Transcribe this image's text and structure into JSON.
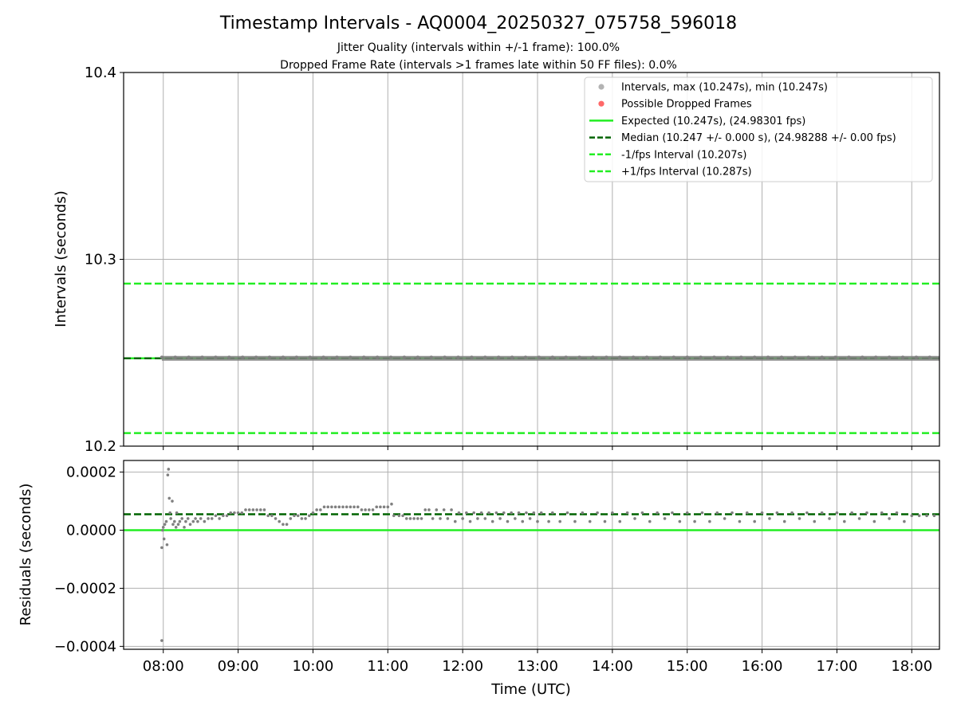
{
  "figure": {
    "title": "Timestamp Intervals - AQ0004_20250327_075758_596018",
    "subtitle_1": "Jitter Quality (intervals within +/-1 frame): 100.0%",
    "subtitle_2": "Dropped Frame Rate (intervals >1 frames late within 50 FF files): 0.0%",
    "xlabel": "Time (UTC)"
  },
  "colors": {
    "points": "#808080",
    "dropped": "#ff4d4d",
    "expected": "#22ee22",
    "median": "#006400",
    "bounds": "#22ee22",
    "grid": "#b0b0b0"
  },
  "chart_data": [
    {
      "type": "scatter",
      "ylabel": "Intervals (seconds)",
      "xlim_hours": [
        7.47,
        18.37
      ],
      "ylim": [
        10.2,
        10.4
      ],
      "yticks": [
        "10.2",
        "10.3",
        "10.4"
      ],
      "grid": true,
      "legend_position": "top-right",
      "series_constant": 10.247,
      "series": [
        {
          "name": "Intervals, max (10.247s), min (10.247s)",
          "kind": "points",
          "color": "#a6a6a6"
        },
        {
          "name": "Possible Dropped Frames",
          "kind": "points",
          "color": "#ff4d4d"
        },
        {
          "name": "Expected (10.247s), (24.98301 fps)",
          "kind": "line",
          "style": "solid",
          "color": "#22ee22",
          "value": 10.247
        },
        {
          "name": "Median (10.247 +/- 0.000 s), (24.98288 +/- 0.00 fps)",
          "kind": "line",
          "style": "dashed",
          "color": "#006400",
          "value": 10.247
        },
        {
          "name": "-1/fps Interval (10.207s)",
          "kind": "line",
          "style": "dashed",
          "color": "#22ee22",
          "value": 10.207
        },
        {
          "name": "+1/fps Interval (10.287s)",
          "kind": "line",
          "style": "dashed",
          "color": "#22ee22",
          "value": 10.287
        }
      ]
    },
    {
      "type": "scatter",
      "ylabel": "Residuals (seconds)",
      "xlim_hours": [
        7.47,
        18.37
      ],
      "ylim": [
        -0.00041,
        0.00024
      ],
      "yticks": [
        {
          "value": 0.0002,
          "label": "0.0002"
        },
        {
          "value": 0.0,
          "label": "0.0000"
        },
        {
          "value": -0.0002,
          "label": "−0.0002"
        },
        {
          "value": -0.0004,
          "label": "−0.0004"
        }
      ],
      "xticks": [
        {
          "hour": 8,
          "label": "08:00"
        },
        {
          "hour": 9,
          "label": "09:00"
        },
        {
          "hour": 10,
          "label": "10:00"
        },
        {
          "hour": 11,
          "label": "11:00"
        },
        {
          "hour": 12,
          "label": "12:00"
        },
        {
          "hour": 13,
          "label": "13:00"
        },
        {
          "hour": 14,
          "label": "14:00"
        },
        {
          "hour": 15,
          "label": "15:00"
        },
        {
          "hour": 16,
          "label": "16:00"
        },
        {
          "hour": 17,
          "label": "17:00"
        },
        {
          "hour": 18,
          "label": "18:00"
        }
      ],
      "grid": true,
      "expected_residual": 0.0,
      "median_residual": 5.5e-05,
      "points": [
        [
          7.98,
          -0.00038
        ],
        [
          7.98,
          -6e-05
        ],
        [
          7.99,
          0.0
        ],
        [
          8.0,
          1e-05
        ],
        [
          8.01,
          -3e-05
        ],
        [
          8.02,
          2e-05
        ],
        [
          8.04,
          3e-05
        ],
        [
          8.05,
          -5e-05
        ],
        [
          8.06,
          0.00019
        ],
        [
          8.07,
          0.00021
        ],
        [
          8.08,
          0.00011
        ],
        [
          8.09,
          6e-05
        ],
        [
          8.1,
          4e-05
        ],
        [
          8.12,
          0.0001
        ],
        [
          8.13,
          2e-05
        ],
        [
          8.15,
          3e-05
        ],
        [
          8.17,
          1e-05
        ],
        [
          8.18,
          6e-05
        ],
        [
          8.2,
          2e-05
        ],
        [
          8.22,
          3e-05
        ],
        [
          8.25,
          4e-05
        ],
        [
          8.28,
          1e-05
        ],
        [
          8.3,
          3e-05
        ],
        [
          8.33,
          4e-05
        ],
        [
          8.36,
          2e-05
        ],
        [
          8.4,
          3e-05
        ],
        [
          8.43,
          4e-05
        ],
        [
          8.46,
          3e-05
        ],
        [
          8.5,
          4e-05
        ],
        [
          8.55,
          3e-05
        ],
        [
          8.6,
          4e-05
        ],
        [
          8.65,
          4e-05
        ],
        [
          8.7,
          5e-05
        ],
        [
          8.75,
          4e-05
        ],
        [
          8.8,
          5e-05
        ],
        [
          8.85,
          5e-05
        ],
        [
          8.9,
          6e-05
        ],
        [
          8.95,
          6e-05
        ],
        [
          9.0,
          6e-05
        ],
        [
          9.05,
          6e-05
        ],
        [
          9.1,
          7e-05
        ],
        [
          9.15,
          7e-05
        ],
        [
          9.2,
          7e-05
        ],
        [
          9.25,
          7e-05
        ],
        [
          9.3,
          7e-05
        ],
        [
          9.35,
          7e-05
        ],
        [
          9.4,
          5e-05
        ],
        [
          9.45,
          5e-05
        ],
        [
          9.5,
          4e-05
        ],
        [
          9.55,
          3e-05
        ],
        [
          9.6,
          2e-05
        ],
        [
          9.65,
          2e-05
        ],
        [
          9.7,
          4e-05
        ],
        [
          9.75,
          5e-05
        ],
        [
          9.8,
          5e-05
        ],
        [
          9.85,
          4e-05
        ],
        [
          9.9,
          4e-05
        ],
        [
          9.95,
          5e-05
        ],
        [
          10.0,
          6e-05
        ],
        [
          10.05,
          7e-05
        ],
        [
          10.1,
          7e-05
        ],
        [
          10.15,
          8e-05
        ],
        [
          10.2,
          8e-05
        ],
        [
          10.25,
          8e-05
        ],
        [
          10.3,
          8e-05
        ],
        [
          10.35,
          8e-05
        ],
        [
          10.4,
          8e-05
        ],
        [
          10.45,
          8e-05
        ],
        [
          10.5,
          8e-05
        ],
        [
          10.55,
          8e-05
        ],
        [
          10.6,
          8e-05
        ],
        [
          10.65,
          7e-05
        ],
        [
          10.7,
          7e-05
        ],
        [
          10.75,
          7e-05
        ],
        [
          10.8,
          7e-05
        ],
        [
          10.85,
          8e-05
        ],
        [
          10.9,
          8e-05
        ],
        [
          10.95,
          8e-05
        ],
        [
          11.0,
          8e-05
        ],
        [
          11.05,
          9e-05
        ],
        [
          11.08,
          5e-05
        ],
        [
          11.15,
          5e-05
        ],
        [
          11.2,
          5e-05
        ],
        [
          11.25,
          4e-05
        ],
        [
          11.3,
          4e-05
        ],
        [
          11.35,
          4e-05
        ],
        [
          11.4,
          4e-05
        ],
        [
          11.45,
          4e-05
        ],
        [
          11.5,
          7e-05
        ],
        [
          11.55,
          7e-05
        ],
        [
          11.6,
          4e-05
        ],
        [
          11.65,
          7e-05
        ],
        [
          11.7,
          4e-05
        ],
        [
          11.75,
          7e-05
        ],
        [
          11.8,
          4e-05
        ],
        [
          11.85,
          7e-05
        ],
        [
          11.9,
          3e-05
        ],
        [
          11.95,
          6e-05
        ],
        [
          12.0,
          4e-05
        ],
        [
          12.05,
          6e-05
        ],
        [
          12.1,
          3e-05
        ],
        [
          12.15,
          6e-05
        ],
        [
          12.2,
          4e-05
        ],
        [
          12.25,
          6e-05
        ],
        [
          12.3,
          4e-05
        ],
        [
          12.35,
          6e-05
        ],
        [
          12.4,
          3e-05
        ],
        [
          12.45,
          6e-05
        ],
        [
          12.5,
          4e-05
        ],
        [
          12.55,
          6e-05
        ],
        [
          12.6,
          3e-05
        ],
        [
          12.65,
          6e-05
        ],
        [
          12.7,
          4e-05
        ],
        [
          12.75,
          6e-05
        ],
        [
          12.8,
          3e-05
        ],
        [
          12.85,
          6e-05
        ],
        [
          12.9,
          4e-05
        ],
        [
          12.95,
          6e-05
        ],
        [
          13.0,
          3e-05
        ],
        [
          13.05,
          6e-05
        ],
        [
          13.15,
          3e-05
        ],
        [
          13.2,
          6e-05
        ],
        [
          13.3,
          3e-05
        ],
        [
          13.4,
          6e-05
        ],
        [
          13.5,
          3e-05
        ],
        [
          13.6,
          6e-05
        ],
        [
          13.7,
          3e-05
        ],
        [
          13.8,
          6e-05
        ],
        [
          13.9,
          3e-05
        ],
        [
          14.0,
          6e-05
        ],
        [
          14.1,
          3e-05
        ],
        [
          14.2,
          6e-05
        ],
        [
          14.3,
          4e-05
        ],
        [
          14.4,
          6e-05
        ],
        [
          14.5,
          3e-05
        ],
        [
          14.6,
          6e-05
        ],
        [
          14.7,
          4e-05
        ],
        [
          14.8,
          6e-05
        ],
        [
          14.9,
          3e-05
        ],
        [
          15.0,
          6e-05
        ],
        [
          15.1,
          3e-05
        ],
        [
          15.2,
          6e-05
        ],
        [
          15.3,
          3e-05
        ],
        [
          15.4,
          6e-05
        ],
        [
          15.5,
          4e-05
        ],
        [
          15.6,
          6e-05
        ],
        [
          15.7,
          3e-05
        ],
        [
          15.8,
          6e-05
        ],
        [
          15.9,
          3e-05
        ],
        [
          16.0,
          6e-05
        ],
        [
          16.1,
          4e-05
        ],
        [
          16.2,
          6e-05
        ],
        [
          16.3,
          3e-05
        ],
        [
          16.4,
          6e-05
        ],
        [
          16.5,
          4e-05
        ],
        [
          16.6,
          6e-05
        ],
        [
          16.7,
          3e-05
        ],
        [
          16.8,
          6e-05
        ],
        [
          16.9,
          4e-05
        ],
        [
          17.0,
          6e-05
        ],
        [
          17.1,
          3e-05
        ],
        [
          17.2,
          6e-05
        ],
        [
          17.3,
          4e-05
        ],
        [
          17.4,
          6e-05
        ],
        [
          17.5,
          3e-05
        ],
        [
          17.6,
          6e-05
        ],
        [
          17.7,
          4e-05
        ],
        [
          17.8,
          6e-05
        ],
        [
          17.9,
          3e-05
        ],
        [
          18.0,
          5e-05
        ],
        [
          18.1,
          5e-05
        ],
        [
          18.2,
          5e-05
        ],
        [
          18.3,
          5e-05
        ]
      ]
    }
  ]
}
